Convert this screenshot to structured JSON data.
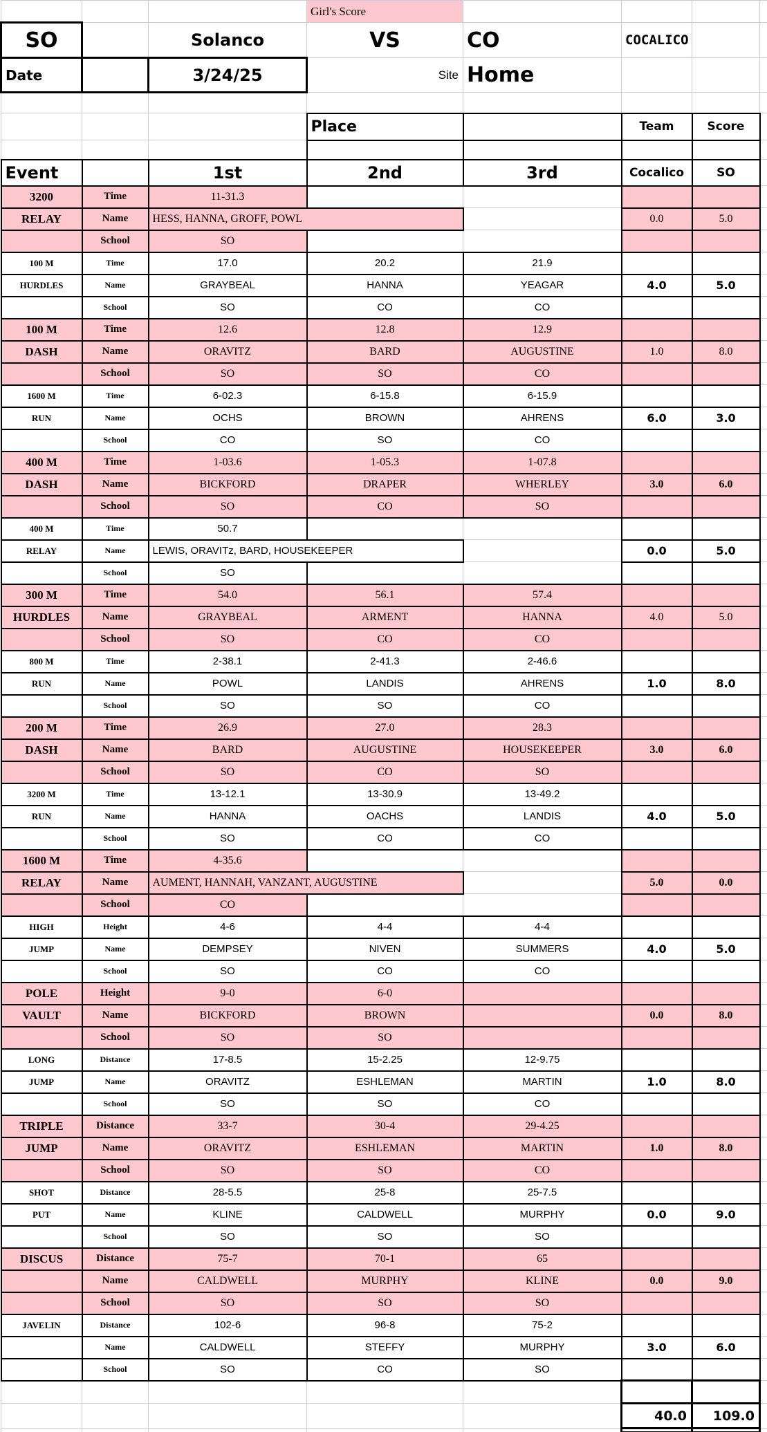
{
  "sheet": {
    "colors": {
      "pink": "#ffc7ce",
      "gridline": "#c9c9e1",
      "border": "#000000"
    },
    "top": {
      "girls_score": "Girl's Score",
      "home_abbr": "SO",
      "home_name": "Solanco",
      "vs_label": "VS",
      "away_abbr": "CO",
      "away_name": "COCALICO",
      "date_label": "Date",
      "date_value": "3/24/25",
      "site_label": "Site",
      "site_value": "Home"
    },
    "table_headers": {
      "place": "Place",
      "team": "Team",
      "score": "Score",
      "event": "Event",
      "first": "1st",
      "second": "2nd",
      "third": "3rd",
      "team_col": "Cocalico",
      "score_col": "SO"
    },
    "row_labels": {
      "time": "Time",
      "name": "Name",
      "school": "School",
      "height": "Height",
      "distance": "Distance"
    },
    "totals": {
      "team": "40.0",
      "score": "109.0"
    }
  },
  "events": [
    {
      "title": [
        "3200",
        "RELAY",
        ""
      ],
      "label": "Time",
      "pink": true,
      "relay": true,
      "results": [
        "11-31.3",
        "",
        ""
      ],
      "names": [
        "HESS, HANNA, GROFF, POWL"
      ],
      "schools": [
        "SO",
        "",
        ""
      ],
      "team": "0.0",
      "score": "5.0",
      "score_bold": false
    },
    {
      "title": [
        "100 M",
        "HURDLES",
        ""
      ],
      "label": "Time",
      "pink": false,
      "relay": false,
      "results": [
        "17.0",
        "20.2",
        "21.9"
      ],
      "names": [
        "GRAYBEAL",
        "HANNA",
        "YEAGAR"
      ],
      "schools": [
        "SO",
        "CO",
        "CO"
      ],
      "team": "4.0",
      "score": "5.0",
      "score_bold": true
    },
    {
      "title": [
        "100 M",
        "DASH",
        ""
      ],
      "label": "Time",
      "pink": true,
      "relay": false,
      "results": [
        "12.6",
        "12.8",
        "12.9"
      ],
      "names": [
        "ORAVITZ",
        "BARD",
        "AUGUSTINE"
      ],
      "schools": [
        "SO",
        "SO",
        "CO"
      ],
      "team": "1.0",
      "score": "8.0",
      "score_bold": false
    },
    {
      "title": [
        "1600 M",
        "RUN",
        ""
      ],
      "label": "Time",
      "pink": false,
      "relay": false,
      "results": [
        "6-02.3",
        "6-15.8",
        "6-15.9"
      ],
      "names": [
        "OCHS",
        "BROWN",
        "AHRENS"
      ],
      "schools": [
        "CO",
        "SO",
        "CO"
      ],
      "team": "6.0",
      "score": "3.0",
      "score_bold": true
    },
    {
      "title": [
        "400 M",
        "DASH",
        ""
      ],
      "label": "Time",
      "pink": true,
      "relay": false,
      "results": [
        "1-03.6",
        "1-05.3",
        "1-07.8"
      ],
      "names": [
        "BICKFORD",
        "DRAPER",
        "WHERLEY"
      ],
      "schools": [
        "SO",
        "CO",
        "SO"
      ],
      "team": "3.0",
      "score": "6.0",
      "score_bold": true
    },
    {
      "title": [
        "400 M",
        "RELAY",
        ""
      ],
      "label": "Time",
      "pink": false,
      "relay": true,
      "results": [
        "50.7",
        "",
        ""
      ],
      "names": [
        "LEWIS, ORAVITz, BARD, HOUSEKEEPER"
      ],
      "schools": [
        "SO",
        "",
        ""
      ],
      "team": "0.0",
      "score": "5.0",
      "score_bold": true
    },
    {
      "title": [
        "300 M",
        "HURDLES",
        ""
      ],
      "label": "Time",
      "pink": true,
      "relay": false,
      "results": [
        "54.0",
        "56.1",
        "57.4"
      ],
      "names": [
        "GRAYBEAL",
        "ARMENT",
        "HANNA"
      ],
      "schools": [
        "SO",
        "CO",
        "CO"
      ],
      "team": "4.0",
      "score": "5.0",
      "score_bold": false
    },
    {
      "title": [
        "800 M",
        "RUN",
        ""
      ],
      "label": "Time",
      "pink": false,
      "relay": false,
      "results": [
        "2-38.1",
        "2-41.3",
        "2-46.6"
      ],
      "names": [
        "POWL",
        "LANDIS",
        "AHRENS"
      ],
      "schools": [
        "SO",
        "SO",
        "CO"
      ],
      "team": "1.0",
      "score": "8.0",
      "score_bold": true
    },
    {
      "title": [
        "200 M",
        "DASH",
        ""
      ],
      "label": "Time",
      "pink": true,
      "relay": false,
      "results": [
        "26.9",
        "27.0",
        "28.3"
      ],
      "names": [
        "BARD",
        "AUGUSTINE",
        "HOUSEKEEPER"
      ],
      "schools": [
        "SO",
        "CO",
        "SO"
      ],
      "team": "3.0",
      "score": "6.0",
      "score_bold": true
    },
    {
      "title": [
        "3200 M",
        "RUN",
        ""
      ],
      "label": "Time",
      "pink": false,
      "relay": false,
      "results": [
        "13-12.1",
        "13-30.9",
        "13-49.2"
      ],
      "names": [
        "HANNA",
        "OACHS",
        "LANDIS"
      ],
      "schools": [
        "SO",
        "CO",
        "CO"
      ],
      "team": "4.0",
      "score": "5.0",
      "score_bold": true
    },
    {
      "title": [
        "1600 M",
        "RELAY",
        ""
      ],
      "label": "Time",
      "pink": true,
      "relay": true,
      "results": [
        "4-35.6",
        "",
        ""
      ],
      "names": [
        "AUMENT, HANNAH, VANZANT, AUGUSTINE"
      ],
      "schools": [
        "CO",
        "",
        ""
      ],
      "team": "5.0",
      "score": "0.0",
      "score_bold": true
    },
    {
      "title": [
        "HIGH",
        "JUMP",
        ""
      ],
      "label": "Height",
      "pink": false,
      "relay": false,
      "results": [
        "4-6",
        "4-4",
        "4-4"
      ],
      "names": [
        "DEMPSEY",
        "NIVEN",
        "SUMMERS"
      ],
      "schools": [
        "SO",
        "CO",
        "CO"
      ],
      "team": "4.0",
      "score": "5.0",
      "score_bold": true
    },
    {
      "title": [
        "POLE",
        "VAULT",
        ""
      ],
      "label": "Height",
      "pink": true,
      "relay": false,
      "results": [
        "9-0",
        "6-0",
        ""
      ],
      "names": [
        "BICKFORD",
        "BROWN",
        ""
      ],
      "schools": [
        "SO",
        "SO",
        ""
      ],
      "team": "0.0",
      "score": "8.0",
      "score_bold": true
    },
    {
      "title": [
        "LONG",
        "JUMP",
        ""
      ],
      "label": "Distance",
      "pink": false,
      "relay": false,
      "results": [
        "17-8.5",
        "15-2.25",
        "12-9.75"
      ],
      "names": [
        "ORAVITZ",
        "ESHLEMAN",
        "MARTIN"
      ],
      "schools": [
        "SO",
        "SO",
        "CO"
      ],
      "team": "1.0",
      "score": "8.0",
      "score_bold": true
    },
    {
      "title": [
        "TRIPLE",
        "JUMP",
        ""
      ],
      "label": "Distance",
      "pink": true,
      "relay": false,
      "results": [
        "33-7",
        "30-4",
        "29-4.25"
      ],
      "names": [
        "ORAVITZ",
        "ESHLEMAN",
        "MARTIN"
      ],
      "schools": [
        "SO",
        "SO",
        "CO"
      ],
      "team": "1.0",
      "score": "8.0",
      "score_bold": true
    },
    {
      "title": [
        "SHOT",
        "PUT",
        ""
      ],
      "label": "Distance",
      "pink": false,
      "relay": false,
      "results": [
        "28-5.5",
        "25-8",
        "25-7.5"
      ],
      "names": [
        "KLINE",
        "CALDWELL",
        "MURPHY"
      ],
      "schools": [
        "SO",
        "SO",
        "SO"
      ],
      "team": "0.0",
      "score": "9.0",
      "score_bold": true
    },
    {
      "title": [
        "DISCUS",
        "",
        ""
      ],
      "label": "Distance",
      "pink": true,
      "relay": false,
      "results": [
        "75-7",
        "70-1",
        "65"
      ],
      "names": [
        "CALDWELL",
        "MURPHY",
        "KLINE"
      ],
      "schools": [
        "SO",
        "SO",
        "SO"
      ],
      "team": "0.0",
      "score": "9.0",
      "score_bold": true
    },
    {
      "title": [
        "JAVELIN",
        "",
        ""
      ],
      "label": "Distance",
      "pink": false,
      "relay": false,
      "results": [
        "102-6",
        "96-8",
        "75-2"
      ],
      "names": [
        "CALDWELL",
        "STEFFY",
        "MURPHY"
      ],
      "schools": [
        "SO",
        "CO",
        "SO"
      ],
      "team": "3.0",
      "score": "6.0",
      "score_bold": true
    }
  ]
}
